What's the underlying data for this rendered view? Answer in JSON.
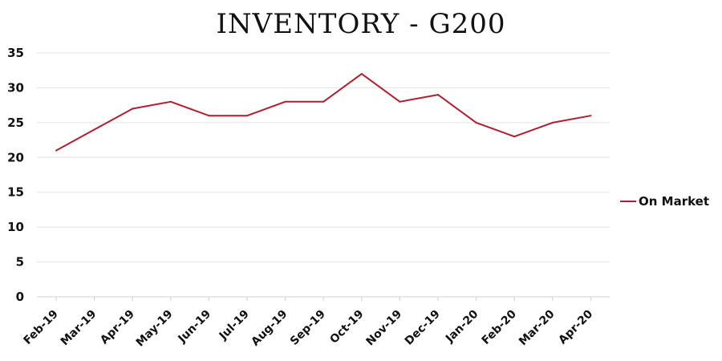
{
  "chart_data": {
    "type": "line",
    "title": "INVENTORY - G200",
    "xlabel": "",
    "ylabel": "",
    "ylim": [
      0,
      35
    ],
    "yticks": [
      0,
      5,
      10,
      15,
      20,
      25,
      30,
      35
    ],
    "grid": true,
    "legend_position": "right",
    "categories": [
      "Feb-19",
      "Mar-19",
      "Apr-19",
      "May-19",
      "Jun-19",
      "Jul-19",
      "Aug-19",
      "Sep-19",
      "Oct-19",
      "Nov-19",
      "Dec-19",
      "Jan-20",
      "Feb-20",
      "Mar-20",
      "Apr-20"
    ],
    "series": [
      {
        "name": "On Market",
        "color": "#b01e2f",
        "values": [
          21,
          24,
          27,
          28,
          26,
          26,
          28,
          28,
          32,
          28,
          29,
          25,
          23,
          25,
          26
        ]
      }
    ]
  }
}
